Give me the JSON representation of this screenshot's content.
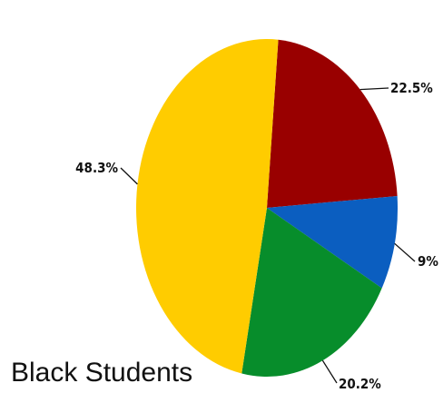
{
  "chart_data": {
    "type": "pie",
    "title": "Black Students",
    "slices": [
      {
        "value": 22.5,
        "label": "22.5%",
        "color": "#990000"
      },
      {
        "value": 9,
        "label": "9%",
        "color": "#0b5ec0"
      },
      {
        "value": 20.2,
        "label": "20.2%",
        "color": "#078d2b"
      },
      {
        "value": 48.3,
        "label": "48.3%",
        "color": "#ffcc00"
      }
    ]
  }
}
